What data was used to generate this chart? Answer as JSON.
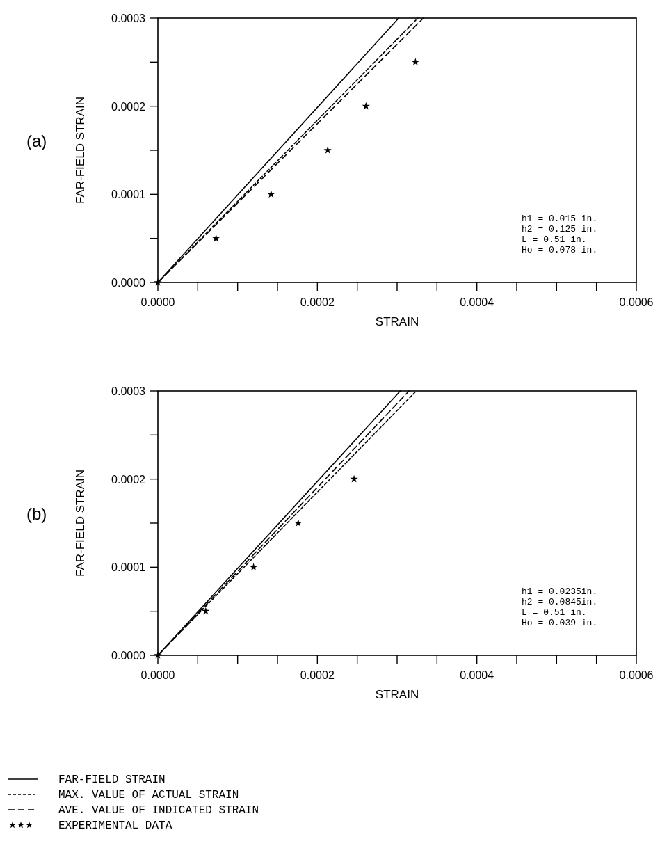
{
  "chart_data": [
    {
      "type": "line",
      "title": "(a)",
      "xlabel": "STRAIN",
      "ylabel": "FAR-FIELD STRAIN",
      "xlim": [
        0,
        0.0006
      ],
      "ylim": [
        0,
        0.0003
      ],
      "xticks": [
        {
          "value": 0,
          "label": "0.0000"
        },
        {
          "value": 5e-05,
          "label": null
        },
        {
          "value": 0.0001,
          "label": null
        },
        {
          "value": 0.00015,
          "label": null
        },
        {
          "value": 0.0002,
          "label": "0.0002"
        },
        {
          "value": 0.00025,
          "label": null
        },
        {
          "value": 0.0003,
          "label": null
        },
        {
          "value": 0.00035,
          "label": null
        },
        {
          "value": 0.0004,
          "label": "0.0004"
        },
        {
          "value": 0.00045,
          "label": null
        },
        {
          "value": 0.0005,
          "label": null
        },
        {
          "value": 0.00055,
          "label": null
        },
        {
          "value": 0.0006,
          "label": "0.0006"
        }
      ],
      "yticks": [
        {
          "value": 0,
          "label": "0.0000"
        },
        {
          "value": 5e-05,
          "label": null
        },
        {
          "value": 0.0001,
          "label": "0.0001"
        },
        {
          "value": 0.00015,
          "label": null
        },
        {
          "value": 0.0002,
          "label": "0.0002"
        },
        {
          "value": 0.00025,
          "label": null
        },
        {
          "value": 0.0003,
          "label": "0.0003"
        }
      ],
      "annotations": [
        "h1 = 0.015 in.",
        "h2 = 0.125 in.",
        "L = 0.51 in.",
        "Ho = 0.078 in."
      ],
      "series": [
        {
          "color": "#000000",
          "line_style": "solid",
          "x": [
            0,
            0.000302
          ],
          "values": [
            0,
            0.0003
          ]
        },
        {
          "color": "#000000",
          "line_style": "dotted",
          "x": [
            0,
            0.000326
          ],
          "values": [
            0,
            0.0003
          ]
        },
        {
          "color": "#000000",
          "line_style": "dashed",
          "x": [
            0,
            0.000333
          ],
          "values": [
            0,
            0.0003
          ]
        },
        {
          "type": "scatter",
          "color": "#000000",
          "marker": "star",
          "x": [
            0,
            7.3e-05,
            0.000142,
            0.000213,
            0.000261,
            0.000323
          ],
          "values": [
            0,
            5e-05,
            0.0001,
            0.00015,
            0.0002,
            0.00025
          ]
        }
      ]
    },
    {
      "type": "line",
      "title": "(b)",
      "xlabel": "STRAIN",
      "ylabel": "FAR-FIELD STRAIN",
      "xlim": [
        0,
        0.0006
      ],
      "ylim": [
        0,
        0.0003
      ],
      "legend": "bottom",
      "xticks": [
        {
          "value": 0,
          "label": "0.0000"
        },
        {
          "value": 5e-05,
          "label": null
        },
        {
          "value": 0.0001,
          "label": null
        },
        {
          "value": 0.00015,
          "label": null
        },
        {
          "value": 0.0002,
          "label": "0.0002"
        },
        {
          "value": 0.00025,
          "label": null
        },
        {
          "value": 0.0003,
          "label": null
        },
        {
          "value": 0.00035,
          "label": null
        },
        {
          "value": 0.0004,
          "label": "0.0004"
        },
        {
          "value": 0.00045,
          "label": null
        },
        {
          "value": 0.0005,
          "label": null
        },
        {
          "value": 0.00055,
          "label": null
        },
        {
          "value": 0.0006,
          "label": "0.0006"
        }
      ],
      "yticks": [
        {
          "value": 0,
          "label": "0.0000"
        },
        {
          "value": 5e-05,
          "label": null
        },
        {
          "value": 0.0001,
          "label": "0.0001"
        },
        {
          "value": 0.00015,
          "label": null
        },
        {
          "value": 0.0002,
          "label": "0.0002"
        },
        {
          "value": 0.00025,
          "label": null
        },
        {
          "value": 0.0003,
          "label": "0.0003"
        }
      ],
      "annotations": [
        "h1 = 0.0235in.",
        "h2 = 0.0845in.",
        "L = 0.51 in.",
        "Ho = 0.039 in."
      ],
      "series": [
        {
          "name": "FAR-FIELD STRAIN",
          "color": "#000000",
          "line_style": "solid",
          "x": [
            0,
            0.000304
          ],
          "values": [
            0,
            0.0003
          ]
        },
        {
          "name": "MAX. VALUE OF ACTUAL STRAIN",
          "color": "#000000",
          "line_style": "dotted",
          "x": [
            0,
            0.000324
          ],
          "values": [
            0,
            0.0003
          ]
        },
        {
          "name": "AVE. VALUE OF INDICATED STRAIN",
          "color": "#000000",
          "line_style": "dashed",
          "x": [
            0,
            0.000315
          ],
          "values": [
            0,
            0.0003
          ]
        },
        {
          "type": "scatter",
          "name": "EXPERIMENTAL DATA",
          "color": "#000000",
          "marker": "star",
          "x": [
            0,
            6e-05,
            0.00012,
            0.000176,
            0.000246
          ],
          "values": [
            0,
            5e-05,
            0.0001,
            0.00015,
            0.0002
          ]
        }
      ]
    }
  ]
}
